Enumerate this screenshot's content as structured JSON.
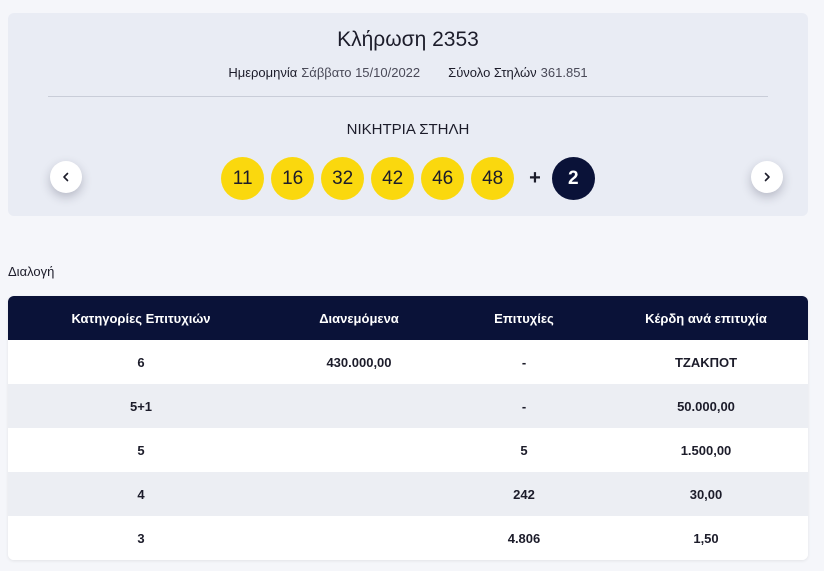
{
  "draw": {
    "title": "Κλήρωση 2353",
    "date_label": "Ημερομηνία",
    "date_value": "Σάββατο 15/10/2022",
    "columns_label": "Σύνολο Στηλών",
    "columns_value": "361.851",
    "winning_label": "ΝΙΚΗΤΡΙΑ ΣΤΗΛΗ",
    "numbers": [
      "11",
      "16",
      "32",
      "42",
      "46",
      "48"
    ],
    "plus": "+",
    "joker": "2",
    "prev_icon": "chevron-left-icon",
    "next_icon": "chevron-right-icon"
  },
  "colors": {
    "ball": "#fad80e",
    "joker": "#0a1238",
    "header": "#0a1238"
  },
  "section": {
    "label": "Διαλογή"
  },
  "table": {
    "headers": [
      "Κατηγορίες Επιτυχιών",
      "Διανεμόμενα",
      "Επιτυχίες",
      "Κέρδη ανά επιτυχία"
    ],
    "rows": [
      [
        "6",
        "430.000,00",
        "-",
        "ΤΖΑΚΠΟΤ"
      ],
      [
        "5+1",
        "",
        "-",
        "50.000,00"
      ],
      [
        "5",
        "",
        "5",
        "1.500,00"
      ],
      [
        "4",
        "",
        "242",
        "30,00"
      ],
      [
        "3",
        "",
        "4.806",
        "1,50"
      ]
    ]
  }
}
